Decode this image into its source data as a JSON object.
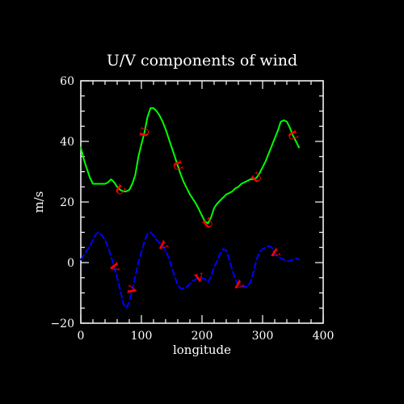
{
  "chart_data": {
    "type": "line",
    "title": "U/V components of wind",
    "xlabel": "longitude",
    "ylabel": "m/s",
    "xlim": [
      0,
      400
    ],
    "ylim": [
      -20,
      60
    ],
    "xticks": [
      0,
      100,
      200,
      300,
      400
    ],
    "yticks": [
      -20,
      0,
      20,
      40,
      60
    ],
    "grid": false,
    "colors": {
      "background": "#000000",
      "frame": "#ffffff",
      "u_line": "#00ff00",
      "v_line": "#0000ff",
      "curve_labels": "#ff0000"
    },
    "series": [
      {
        "name": "U",
        "line_style": "solid",
        "label": "U",
        "label_at_x": [
          65,
          105,
          160,
          210,
          290,
          350
        ],
        "x": [
          0,
          5,
          10,
          15,
          20,
          25,
          30,
          35,
          40,
          45,
          50,
          55,
          60,
          65,
          70,
          75,
          80,
          85,
          90,
          95,
          100,
          105,
          110,
          115,
          120,
          125,
          130,
          135,
          140,
          145,
          150,
          155,
          160,
          165,
          170,
          175,
          180,
          185,
          190,
          195,
          200,
          205,
          210,
          215,
          220,
          225,
          230,
          235,
          240,
          245,
          250,
          255,
          260,
          265,
          270,
          275,
          280,
          285,
          290,
          295,
          300,
          305,
          310,
          315,
          320,
          325,
          330,
          335,
          340,
          345,
          350,
          355,
          360
        ],
        "values": [
          38,
          34,
          31,
          28,
          26,
          26,
          26,
          26,
          26,
          26.5,
          27.5,
          26.5,
          25,
          24,
          23.5,
          23.5,
          24,
          26,
          29,
          35,
          39,
          43,
          48,
          51,
          51,
          50,
          48.5,
          46.5,
          44,
          41,
          38,
          35,
          32,
          29,
          26.5,
          24.5,
          22.5,
          21,
          19.5,
          17.5,
          15.5,
          13.5,
          13,
          15,
          18,
          19.5,
          20.5,
          21.5,
          22.5,
          23,
          23.5,
          24.5,
          25,
          26,
          26.5,
          27,
          27.5,
          27.5,
          28,
          29.5,
          31.5,
          33.5,
          36,
          38.5,
          41,
          43.5,
          46.5,
          47,
          46.5,
          44.5,
          42,
          40,
          38
        ]
      },
      {
        "name": "V",
        "line_style": "dashed",
        "label": "V",
        "label_at_x": [
          55,
          85,
          135,
          195,
          260,
          320
        ],
        "x": [
          0,
          5,
          10,
          15,
          20,
          25,
          30,
          35,
          40,
          45,
          50,
          55,
          60,
          65,
          70,
          75,
          80,
          85,
          90,
          95,
          100,
          105,
          110,
          115,
          120,
          125,
          130,
          135,
          140,
          145,
          150,
          155,
          160,
          165,
          170,
          175,
          180,
          185,
          190,
          195,
          200,
          205,
          210,
          215,
          220,
          225,
          230,
          235,
          240,
          245,
          250,
          255,
          260,
          265,
          270,
          275,
          280,
          285,
          290,
          295,
          300,
          305,
          310,
          315,
          320,
          325,
          330,
          335,
          340,
          345,
          350,
          355,
          360
        ],
        "values": [
          1,
          2.5,
          4,
          5.5,
          7.5,
          9.5,
          10,
          9,
          7.5,
          5,
          2,
          -1.5,
          -5,
          -9,
          -13.5,
          -15,
          -13,
          -9,
          -4.5,
          0,
          3.5,
          7,
          9.5,
          10,
          9,
          7.5,
          6.5,
          5.5,
          4,
          1.5,
          -1.5,
          -4.5,
          -7.5,
          -8.5,
          -8.5,
          -8,
          -7,
          -6,
          -5.5,
          -5,
          -5,
          -5.5,
          -6.5,
          -4.5,
          -1.5,
          0.5,
          3,
          4.5,
          4,
          1,
          -2.5,
          -5.5,
          -7.5,
          -8,
          -8,
          -8,
          -6.5,
          -3,
          1,
          3.5,
          4.5,
          5,
          5.5,
          5,
          3,
          2,
          1.5,
          1,
          0.5,
          0.5,
          1,
          1.5,
          1
        ]
      }
    ]
  }
}
